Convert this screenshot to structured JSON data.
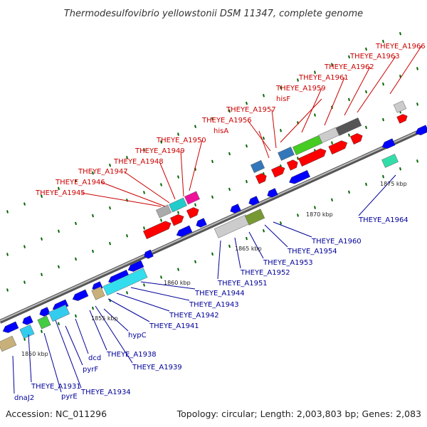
{
  "title": "Thermodesulfovibrio yellowstonii DSM 11347, complete genome",
  "footer": {
    "accession": "Accession: NC_011296",
    "summary": "Topology: circular; Length: 2,003,803 bp; Genes: 2,083"
  },
  "colors": {
    "top_label": "#cc0000",
    "bottom_label": "#000099",
    "forward_gene": "#ff0000",
    "reverse_gene": "#0000ff",
    "tick": "#006600",
    "backbone": "#888888"
  },
  "scale_labels": [
    "1850 kbp",
    "1855 kbp",
    "1860 kbp",
    "1865 kbp",
    "1870 kbp",
    "1875 kbp"
  ],
  "top_labels": [
    "hisA",
    "hisF",
    "THEYE_A1945",
    "THEYE_A1946",
    "THEYE_A1947",
    "THEYE_A1948",
    "THEYE_A1949",
    "THEYE_A1950",
    "THEYE_A1956",
    "THEYE_A1957",
    "THEYE_A1959",
    "THEYE_A1961",
    "THEYE_A1962",
    "THEYE_A1963",
    "THEYE_A1966"
  ],
  "bottom_labels": [
    "dnaJ2",
    "THEYE_A1931",
    "pyrE",
    "THEYE_A1934",
    "pyrF",
    "dcd",
    "THEYE_A1938",
    "THEYE_A1939",
    "hypC",
    "THEYE_A1941",
    "THEYE_A1942",
    "THEYE_A1943",
    "THEYE_A1944",
    "THEYE_A1951",
    "THEYE_A1952",
    "THEYE_A1953",
    "THEYE_A1954",
    "THEYE_A1960",
    "THEYE_A1964"
  ]
}
